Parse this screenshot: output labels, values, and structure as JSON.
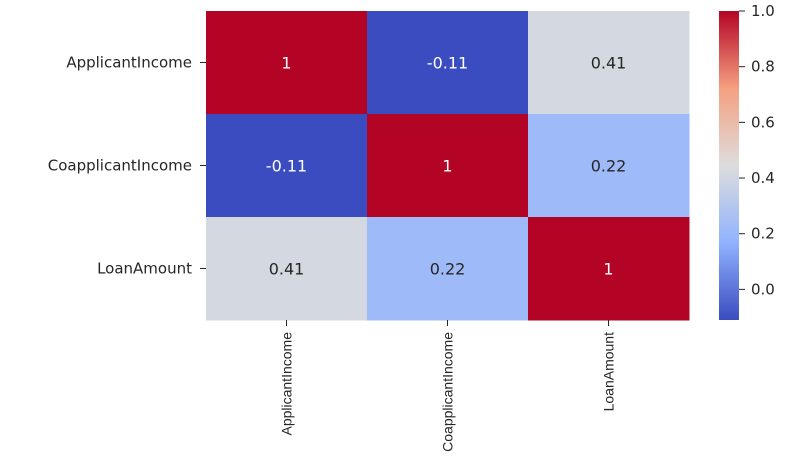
{
  "chart_data": {
    "type": "heatmap",
    "title": "",
    "row_labels": [
      "ApplicantIncome",
      "CoapplicantIncome",
      "LoanAmount"
    ],
    "col_labels": [
      "ApplicantIncome",
      "CoapplicantIncome",
      "LoanAmount"
    ],
    "values": [
      [
        1,
        -0.11,
        0.41
      ],
      [
        -0.11,
        1,
        0.22
      ],
      [
        0.41,
        0.22,
        1
      ]
    ],
    "annotations": [
      [
        "1",
        "-0.11",
        "0.41"
      ],
      [
        "-0.11",
        "1",
        "0.22"
      ],
      [
        "0.41",
        "0.22",
        "1"
      ]
    ],
    "colormap": "coolwarm",
    "colors": {
      "low": "#3b4cc0",
      "mid": "#dddddd",
      "high": "#b40426"
    },
    "vmin": -0.11,
    "vmax": 1.0,
    "colorbar": {
      "ticks": [
        0.0,
        0.2,
        0.4,
        0.6,
        0.8,
        1.0
      ],
      "tick_labels": [
        "0.0",
        "0.2",
        "0.4",
        "0.6",
        "0.8",
        "1.0"
      ],
      "placement": "right"
    },
    "xlabel_rotation": "vertical"
  }
}
